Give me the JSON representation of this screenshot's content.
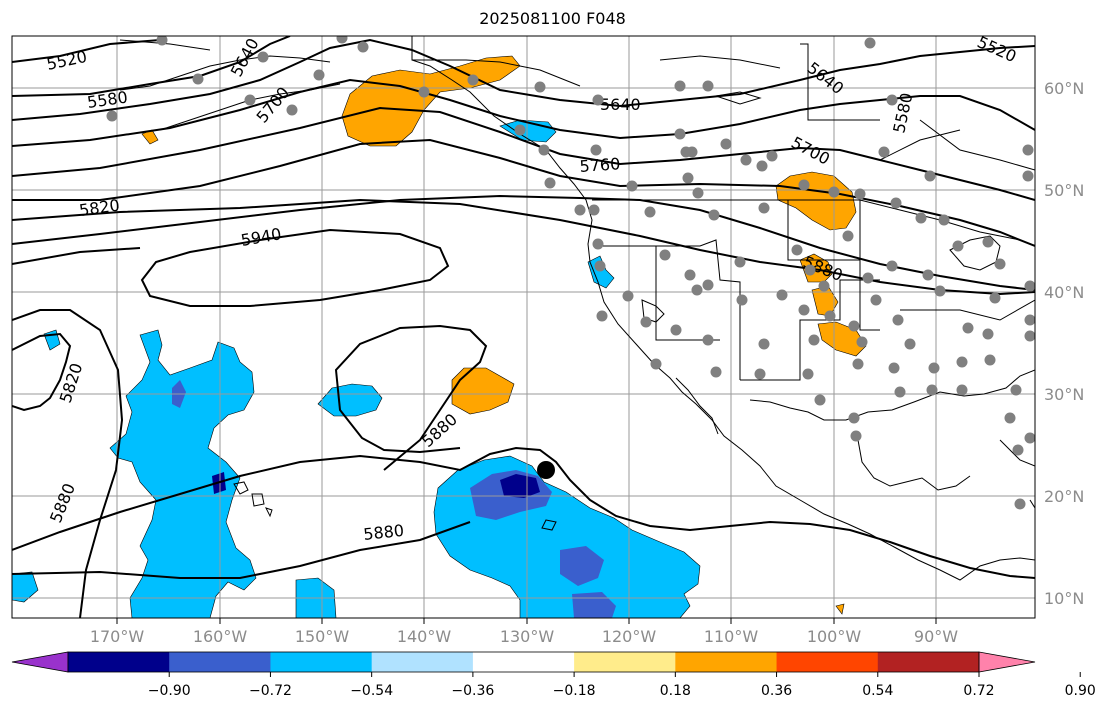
{
  "title": "2025081100 F048",
  "lon_labels": [
    "170°W",
    "160°W",
    "150°W",
    "140°W",
    "130°W",
    "120°W",
    "110°W",
    "100°W",
    "90°W"
  ],
  "lat_labels": [
    "60°N",
    "50°N",
    "40°N",
    "30°N",
    "20°N",
    "10°N"
  ],
  "contour_labels": [
    "5520",
    "5580",
    "5640",
    "5700",
    "5760",
    "5820",
    "5880",
    "5940"
  ],
  "colorbar": {
    "ticks": [
      "−0.90",
      "−0.72",
      "−0.54",
      "−0.36",
      "−0.18",
      "0.18",
      "0.36",
      "0.54",
      "0.72",
      "0.90"
    ],
    "colors": [
      "#9932cc",
      "#00008b",
      "#3a5fcd",
      "#00bfff",
      "#b0e2ff",
      "#ffffff",
      "#ffec8b",
      "#ffa500",
      "#ff4500",
      "#b22222",
      "#ff82ab"
    ]
  },
  "colors": {
    "positive_anomaly": "#ffa500",
    "negative_anomaly": "#00bfff",
    "strong_negative": "#3a5fcd",
    "strongest_negative": "#00008b",
    "stations": "#808080",
    "contours": "#000000"
  },
  "station_marker": "gray dots",
  "storm_marker": "black dot"
}
